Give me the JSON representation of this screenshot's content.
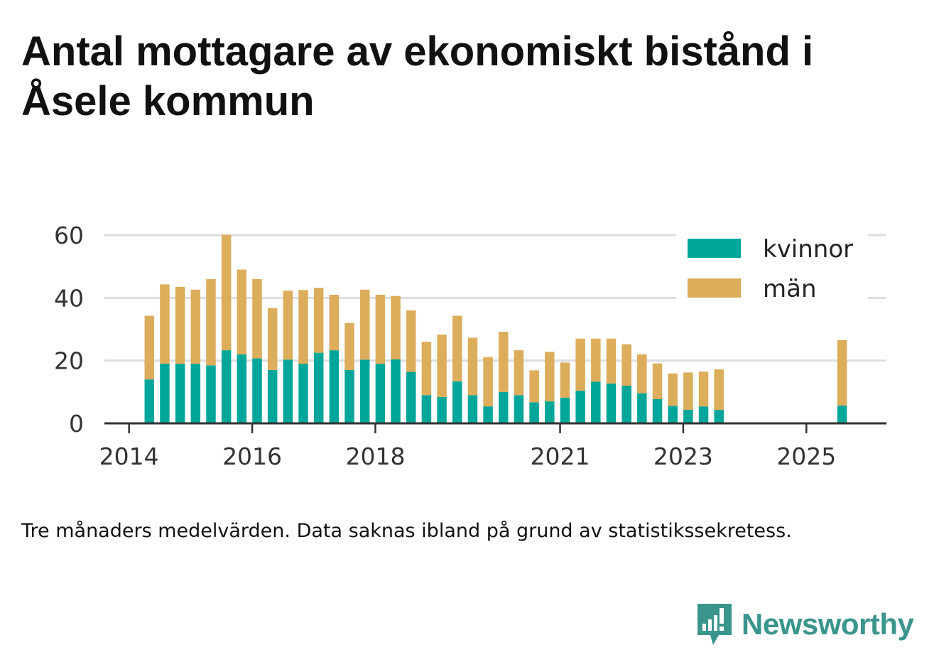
{
  "title": "Antal mottagare av ekonomiskt bistånd i Åsele kommun",
  "footnote": "Tre månaders medelvärden. Data saknas ibland på grund av statistikssekretess.",
  "brand": {
    "name": "Newsworthy",
    "icon": "newsworthy-logo-icon",
    "color": "#3a958c"
  },
  "colors": {
    "kvinnor": "#00a69a",
    "man": "#dcad5b",
    "grid": "#dddddd",
    "axis": "#333333"
  },
  "chart_data": {
    "type": "bar",
    "stacked": true,
    "title": "Antal mottagare av ekonomiskt bistånd i Åsele kommun",
    "xlabel": "",
    "ylabel": "",
    "ylim": [
      0,
      60
    ],
    "yticks": [
      0,
      20,
      40,
      60
    ],
    "xlim": [
      2013.6,
      2026.3
    ],
    "xticks": [
      2014,
      2016,
      2018,
      2021,
      2023,
      2025
    ],
    "xtick_labels": [
      "2014",
      "2016",
      "2018",
      "2021",
      "2023",
      "2025"
    ],
    "legend_position": "top-right",
    "x": [
      2014.33,
      2014.58,
      2014.83,
      2015.08,
      2015.33,
      2015.58,
      2015.83,
      2016.08,
      2016.33,
      2016.58,
      2016.83,
      2017.08,
      2017.33,
      2017.58,
      2017.83,
      2018.08,
      2018.33,
      2018.58,
      2018.83,
      2019.08,
      2019.33,
      2019.58,
      2019.83,
      2020.08,
      2020.33,
      2020.58,
      2020.83,
      2021.08,
      2021.33,
      2021.58,
      2021.83,
      2022.08,
      2022.33,
      2022.58,
      2022.83,
      2023.08,
      2023.33,
      2023.58,
      2025.58
    ],
    "series": [
      {
        "name": "kvinnor",
        "values": [
          14,
          19,
          19,
          19,
          18.5,
          23.3,
          22,
          20.7,
          17,
          20.3,
          19,
          22.5,
          23.3,
          17,
          20.3,
          19,
          20.4,
          16.4,
          9,
          8.4,
          13.4,
          9,
          5.4,
          10,
          9,
          6.7,
          7,
          8.2,
          10.4,
          13.3,
          12.7,
          12,
          9.6,
          7.7,
          5.6,
          4.3,
          5.4,
          4.3,
          5.7
        ]
      },
      {
        "name": "män",
        "values": [
          20.3,
          25.3,
          24.5,
          23.6,
          27.5,
          36.8,
          27,
          25.3,
          19.7,
          22,
          23.5,
          20.7,
          17.7,
          15,
          22.3,
          22,
          20.2,
          19.6,
          17,
          19.9,
          20.9,
          18.3,
          15.7,
          19.2,
          14.3,
          10.2,
          15.8,
          11.2,
          16.6,
          13.7,
          14.3,
          13.2,
          12.4,
          11.4,
          10.3,
          11.9,
          11.1,
          12.9,
          20.8
        ]
      }
    ]
  }
}
